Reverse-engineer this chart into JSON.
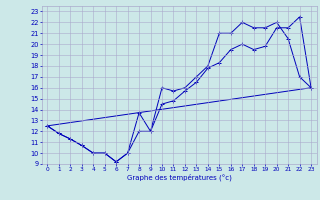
{
  "xlabel": "Graphe des températures (°c)",
  "bg_color": "#cce8e8",
  "grid_color": "#aaaacc",
  "line_color": "#0000bb",
  "xlim": [
    -0.5,
    23.5
  ],
  "ylim": [
    9,
    23.5
  ],
  "xticks": [
    0,
    1,
    2,
    3,
    4,
    5,
    6,
    7,
    8,
    9,
    10,
    11,
    12,
    13,
    14,
    15,
    16,
    17,
    18,
    19,
    20,
    21,
    22,
    23
  ],
  "yticks": [
    9,
    10,
    11,
    12,
    13,
    14,
    15,
    16,
    17,
    18,
    19,
    20,
    21,
    22,
    23
  ],
  "line1_x": [
    0,
    1,
    2,
    3,
    4,
    5,
    6,
    7,
    8,
    9,
    10,
    11,
    12,
    13,
    14,
    15,
    16,
    17,
    18,
    19,
    20,
    21,
    22,
    23
  ],
  "line1_y": [
    12.5,
    11.8,
    11.3,
    10.7,
    10.0,
    10.0,
    9.2,
    10.0,
    13.7,
    12.0,
    16.0,
    15.7,
    16.0,
    17.0,
    18.0,
    21.0,
    21.0,
    22.0,
    21.5,
    21.5,
    22.0,
    20.5,
    17.0,
    16.0
  ],
  "line2_x": [
    0,
    1,
    2,
    3,
    4,
    5,
    6,
    7,
    8,
    9,
    10,
    11,
    12,
    13,
    14,
    15,
    16,
    17,
    18,
    19,
    20,
    21,
    22,
    23
  ],
  "line2_y": [
    12.5,
    11.8,
    11.3,
    10.7,
    10.0,
    10.0,
    9.2,
    10.0,
    12.0,
    12.0,
    14.5,
    14.8,
    15.7,
    16.5,
    17.8,
    18.3,
    19.5,
    20.0,
    19.5,
    19.8,
    21.5,
    21.5,
    22.5,
    16.0
  ],
  "line3_x": [
    0,
    23
  ],
  "line3_y": [
    12.5,
    16.0
  ]
}
